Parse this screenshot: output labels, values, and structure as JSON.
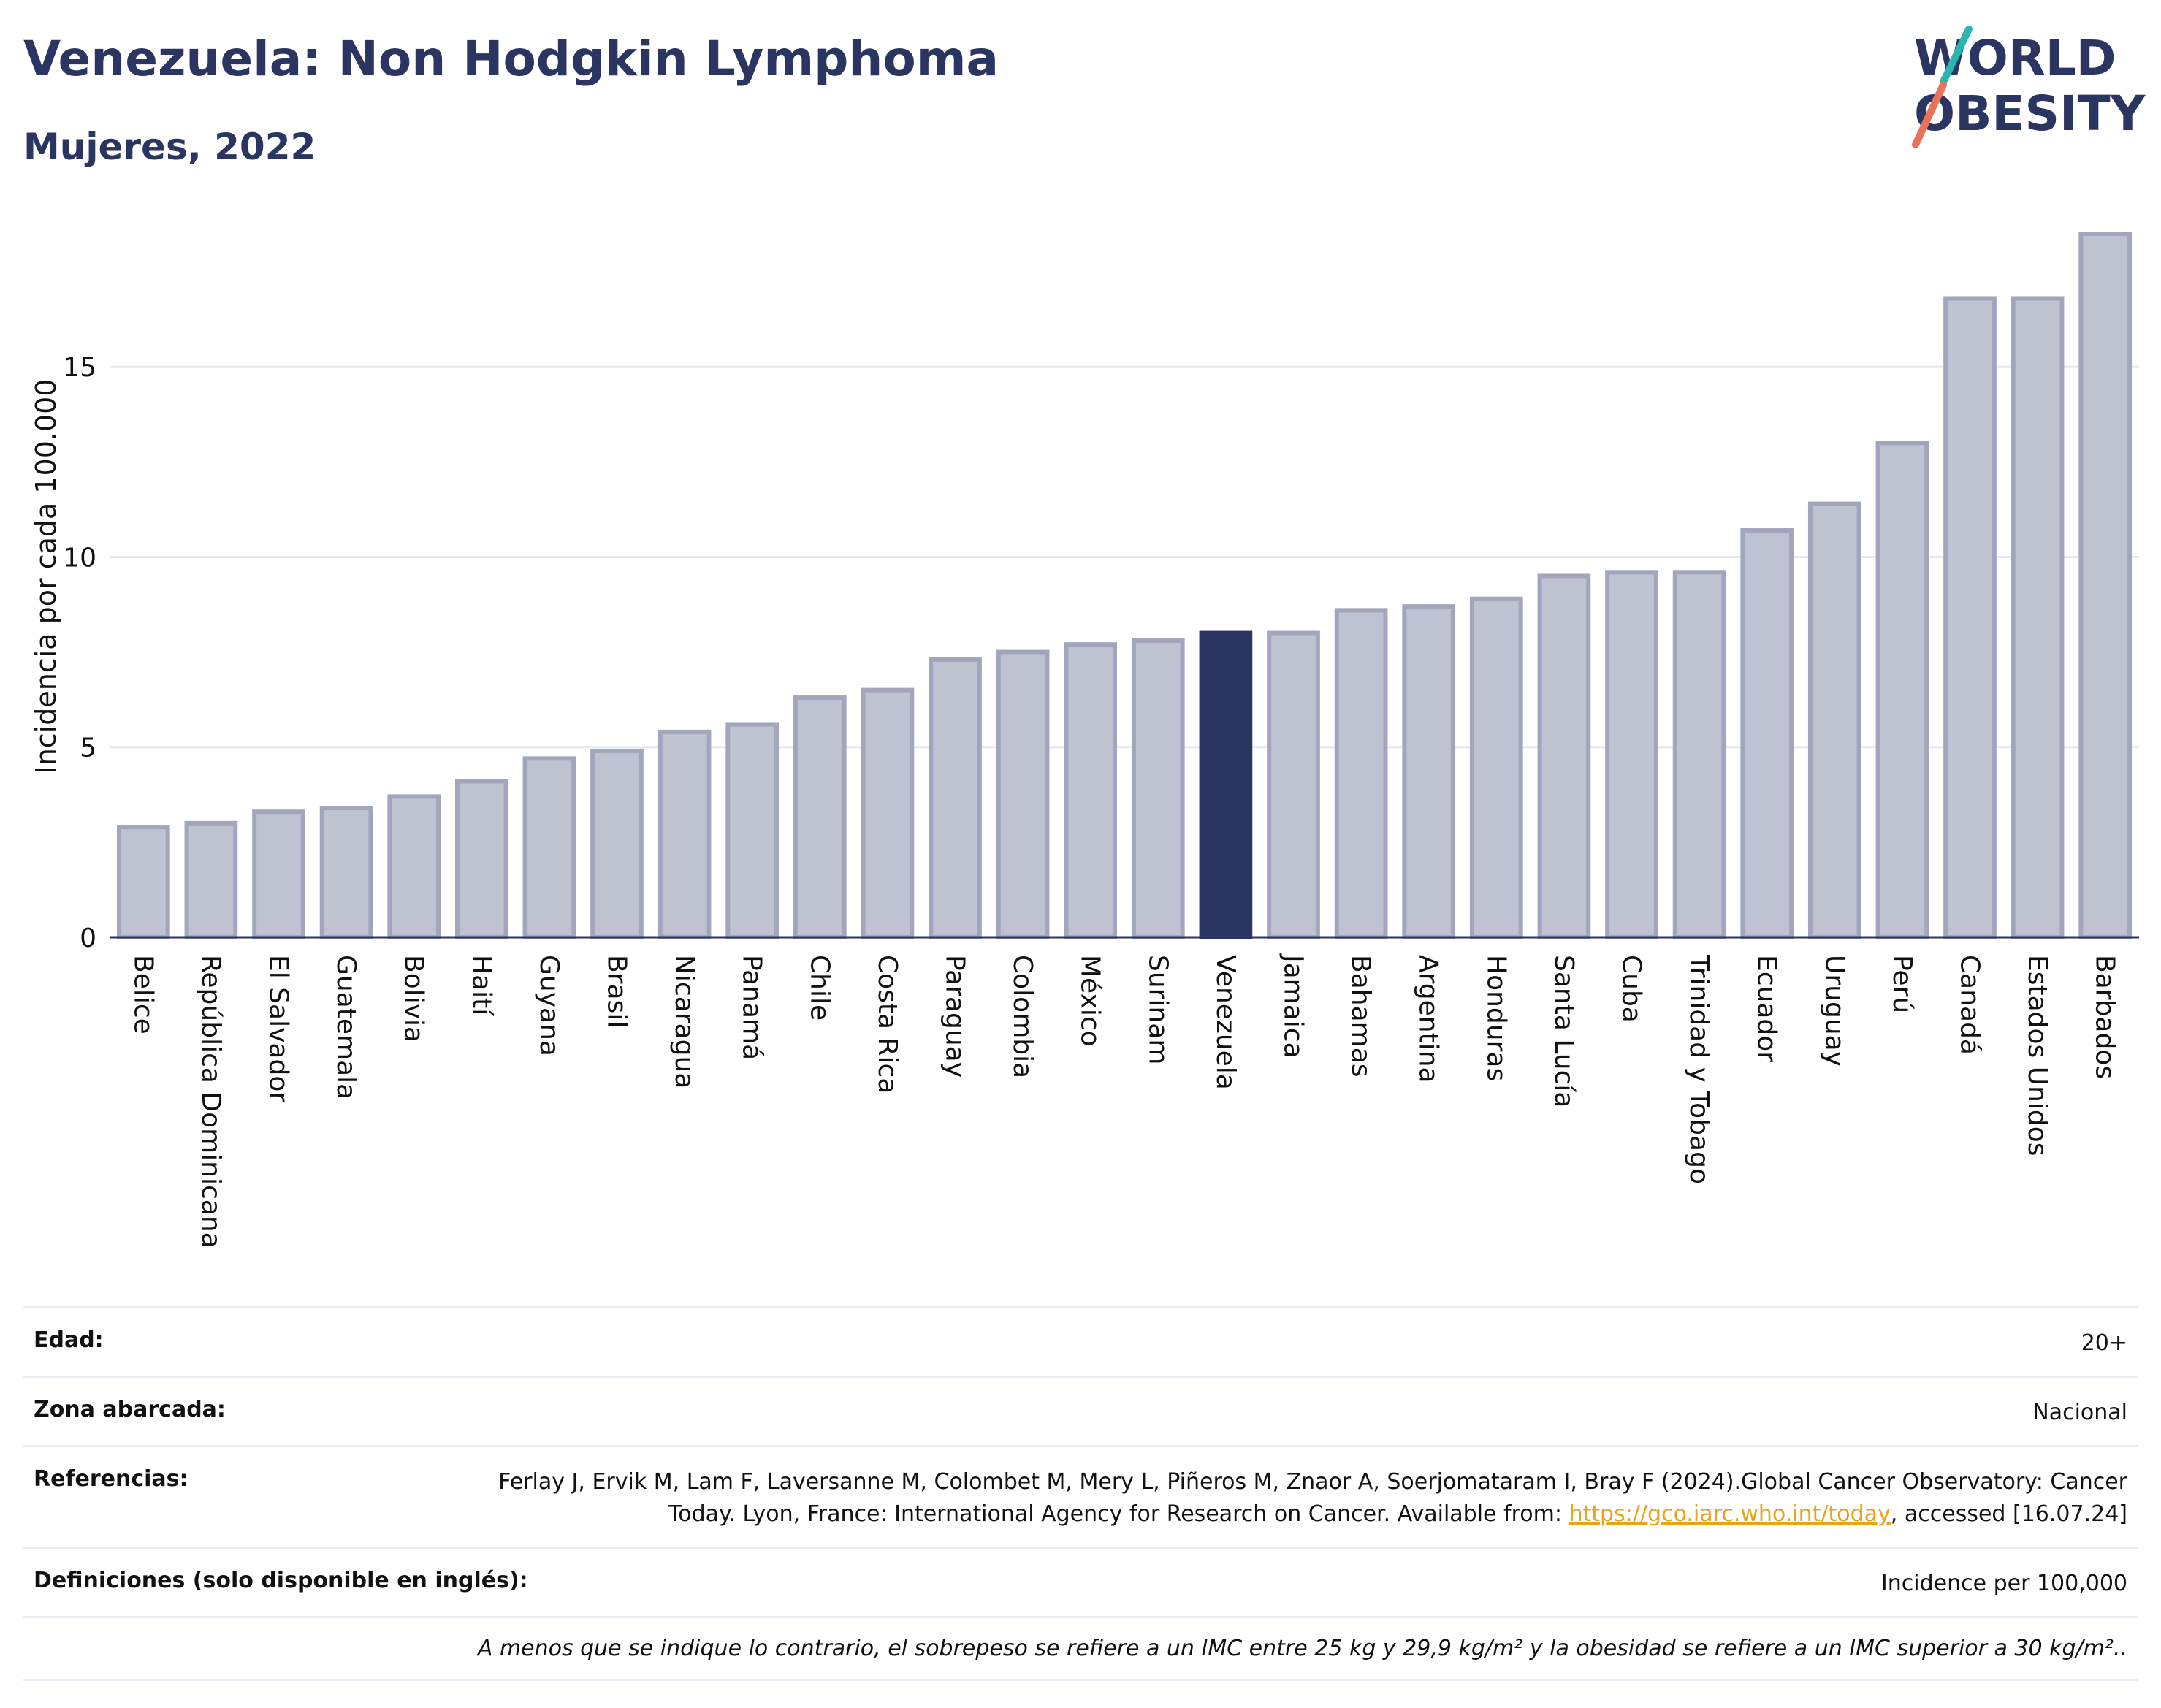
{
  "header": {
    "title": "Venezuela: Non Hodgkin Lymphoma",
    "subtitle": "Mujeres, 2022"
  },
  "logo": {
    "line1": "WORLD",
    "line2": "OBESITY",
    "accent_teal": "#2bb5b0",
    "accent_coral": "#e8735a"
  },
  "colors": {
    "bar": "#bfc3d1",
    "bar_border": "#a1a6bd",
    "highlight": "#2b3561",
    "grid": "#e6e8ef"
  },
  "chart_data": {
    "type": "bar",
    "ylabel": "Incidencia por cada 100.000",
    "ylim": [
      0,
      18.5
    ],
    "yticks": [
      0,
      5,
      10,
      15
    ],
    "highlight": "Venezuela",
    "categories": [
      "Belice",
      "República Dominicana",
      "El Salvador",
      "Guatemala",
      "Bolivia",
      "Haití",
      "Guyana",
      "Brasil",
      "Nicaragua",
      "Panamá",
      "Chile",
      "Costa Rica",
      "Paraguay",
      "Colombia",
      "México",
      "Surinam",
      "Venezuela",
      "Jamaica",
      "Bahamas",
      "Argentina",
      "Honduras",
      "Santa Lucía",
      "Cuba",
      "Trinidad y Tobago",
      "Ecuador",
      "Uruguay",
      "Perú",
      "Canadá",
      "Estados Unidos",
      "Barbados"
    ],
    "values": [
      2.9,
      3.0,
      3.3,
      3.4,
      3.7,
      4.1,
      4.7,
      4.9,
      5.4,
      5.6,
      6.3,
      6.5,
      7.3,
      7.5,
      7.7,
      7.8,
      8.0,
      8.0,
      8.6,
      8.7,
      8.9,
      9.5,
      9.6,
      9.6,
      10.7,
      11.4,
      13.0,
      16.8,
      16.8,
      18.5
    ]
  },
  "info": {
    "edad_label": "Edad:",
    "edad_value": "20+",
    "zona_label": "Zona abarcada:",
    "zona_value": "Nacional",
    "ref_label": "Referencias:",
    "ref_text_1": "Ferlay J, Ervik M, Lam F, Laversanne M, Colombet M, Mery L, Piñeros M, Znaor A, Soerjomataram I, Bray F (2024).Global Cancer Observatory: Cancer Today. Lyon, France: International Agency for Research on Cancer. Available from: ",
    "ref_link": "https://gco.iarc.who.int/today",
    "ref_text_2": ", accessed [16.07.24]",
    "def_label": "Definiciones (solo disponible en inglés):",
    "def_value": "Incidence per 100,000",
    "note": "A menos que se indique lo contrario, el sobrepeso se refiere a un IMC entre 25 kg y 29,9 kg/m² y la obesidad se refiere a un IMC superior a 30 kg/m².."
  }
}
